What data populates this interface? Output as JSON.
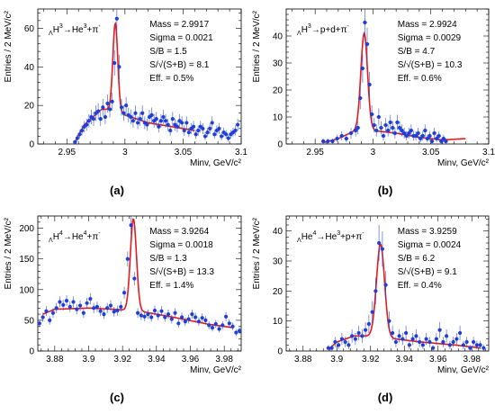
{
  "chart_data": [
    {
      "type": "scatter",
      "panel_label": "(a)",
      "process": {
        "lam": "Λ",
        "prefix_sub": "Λ",
        "html": "ΛH³→He³+π⁻",
        "parts": [
          "Λ",
          "H",
          "3",
          "→He",
          "3",
          "+π",
          "-"
        ]
      },
      "stats": [
        "Mass = 2.9917",
        "Sigma = 0.0021",
        "S/B = 1.5",
        "S/√(S+B) = 8.1",
        "Eff. = 0.5%"
      ],
      "ylabel": "Entries / 2 MeV/c²",
      "xlabel": "Minv, GeV/c²",
      "xlim": [
        2.925,
        3.1
      ],
      "ylim": [
        0,
        70
      ],
      "xticks": [
        2.95,
        3,
        3.05,
        3.1
      ],
      "xtick_labels": [
        "2.95",
        "3",
        "3.05",
        "3.1"
      ],
      "yticks": [
        0,
        20,
        40,
        60
      ],
      "ytick_labels": [
        "0",
        "20",
        "40",
        "60"
      ],
      "fit": {
        "mean": 2.9917,
        "sigma": 0.0021,
        "amp": 45,
        "bg_start": 2.957,
        "bg_points": [
          [
            2.957,
            1
          ],
          [
            2.965,
            10
          ],
          [
            2.98,
            18
          ],
          [
            2.99,
            18
          ],
          [
            3.0,
            15
          ],
          [
            3.02,
            11
          ],
          [
            3.04,
            9
          ],
          [
            3.06,
            7
          ]
        ]
      },
      "x": [
        2.957,
        2.959,
        2.961,
        2.963,
        2.965,
        2.967,
        2.969,
        2.971,
        2.973,
        2.975,
        2.977,
        2.979,
        2.981,
        2.983,
        2.985,
        2.987,
        2.989,
        2.991,
        2.993,
        2.995,
        2.997,
        2.999,
        3.001,
        3.003,
        3.005,
        3.007,
        3.009,
        3.011,
        3.013,
        3.015,
        3.017,
        3.019,
        3.021,
        3.023,
        3.025,
        3.027,
        3.029,
        3.031,
        3.033,
        3.035,
        3.037,
        3.039,
        3.041,
        3.043,
        3.045,
        3.047,
        3.049,
        3.051,
        3.053,
        3.055,
        3.057,
        3.059,
        3.061,
        3.063,
        3.065,
        3.067,
        3.069,
        3.071,
        3.073,
        3.075,
        3.077,
        3.079,
        3.081,
        3.083,
        3.085,
        3.087,
        3.089,
        3.091,
        3.093,
        3.095,
        3.097
      ],
      "y": [
        1,
        3,
        5,
        7,
        9,
        10,
        12,
        14,
        13,
        16,
        17,
        13,
        19,
        14,
        21,
        18,
        22,
        42,
        65,
        40,
        19,
        16,
        20,
        15,
        14,
        12,
        16,
        11,
        13,
        16,
        11,
        10,
        14,
        15,
        12,
        13,
        9,
        12,
        14,
        12,
        10,
        7,
        13,
        10,
        9,
        12,
        11,
        7,
        11,
        6,
        8,
        9,
        5,
        7,
        9,
        8,
        4,
        6,
        8,
        11,
        5,
        7,
        8,
        4,
        6,
        5,
        3,
        5,
        6,
        7,
        10
      ]
    },
    {
      "type": "scatter",
      "panel_label": "(b)",
      "process": {
        "html": "ΛH³→p+d+π⁻",
        "parts": [
          "Λ",
          "H",
          "3",
          "→p+d+π",
          "-"
        ]
      },
      "stats": [
        "Mass = 2.9924",
        "Sigma = 0.0029",
        "S/B = 4.7",
        "S/√(S+B) = 10.3",
        "Eff. = 0.6%"
      ],
      "ylabel": "Entries / 2 MeV/c²",
      "xlabel": "Minv, GeV/c²",
      "xlim": [
        2.925,
        3.1
      ],
      "ylim": [
        0,
        50
      ],
      "xticks": [
        2.95,
        3,
        3.05,
        3.1
      ],
      "xtick_labels": [
        "2.95",
        "3",
        "3.05",
        "3.1"
      ],
      "yticks": [
        0,
        10,
        20,
        30,
        40
      ],
      "ytick_labels": [
        "0",
        "10",
        "20",
        "30",
        "40"
      ],
      "fit": {
        "mean": 2.9924,
        "sigma": 0.0029,
        "amp": 36,
        "bg_start": 2.957,
        "bg_points": [
          [
            2.957,
            0.5
          ],
          [
            2.97,
            2
          ],
          [
            2.985,
            5
          ],
          [
            3.0,
            5
          ],
          [
            3.02,
            4
          ],
          [
            3.04,
            2.5
          ],
          [
            3.06,
            1.5
          ],
          [
            3.08,
            2
          ]
        ]
      },
      "x": [
        2.957,
        2.961,
        2.965,
        2.969,
        2.973,
        2.977,
        2.981,
        2.985,
        2.987,
        2.989,
        2.991,
        2.993,
        2.995,
        2.997,
        2.999,
        3.001,
        3.003,
        3.005,
        3.007,
        3.009,
        3.011,
        3.013,
        3.015,
        3.017,
        3.019,
        3.021,
        3.023,
        3.025,
        3.027,
        3.029,
        3.031,
        3.033,
        3.035,
        3.037,
        3.039,
        3.041,
        3.043,
        3.045,
        3.047,
        3.049,
        3.051,
        3.053,
        3.055,
        3.057,
        3.059,
        3.061,
        3.063
      ],
      "y": [
        1,
        1,
        1,
        2,
        3,
        2,
        4,
        5,
        6,
        17,
        28,
        45,
        37,
        22,
        11,
        7,
        5,
        10,
        6,
        3,
        7,
        5,
        8,
        6,
        4,
        8,
        6,
        5,
        4,
        3,
        4,
        5,
        3,
        3,
        4,
        2,
        3,
        5,
        2,
        3,
        1,
        4,
        2,
        3,
        1,
        2,
        1
      ]
    },
    {
      "type": "scatter",
      "panel_label": "(c)",
      "process": {
        "html": "ΛH⁴→He⁴+π⁻",
        "parts": [
          "Λ",
          "H",
          "4",
          "→He",
          "4",
          "+π",
          "-"
        ]
      },
      "stats": [
        "Mass = 3.9264",
        "Sigma = 0.0018",
        "S/B = 1.3",
        "S/√(S+B) = 13.3",
        "Eff. = 1.4%"
      ],
      "ylabel": "Entries / 2 MeV/c²",
      "xlabel": "Minv, GeV/c²",
      "xlim": [
        3.87,
        3.99
      ],
      "ylim": [
        0,
        220
      ],
      "xticks": [
        3.88,
        3.9,
        3.92,
        3.94,
        3.96,
        3.98
      ],
      "xtick_labels": [
        "3.88",
        "3.9",
        "3.92",
        "3.94",
        "3.96",
        "3.98"
      ],
      "yticks": [
        0,
        50,
        100,
        150,
        200
      ],
      "ytick_labels": [
        "0",
        "50",
        "100",
        "150",
        "200"
      ],
      "fit": {
        "mean": 3.9264,
        "sigma": 0.0018,
        "amp": 150,
        "bg_start": 3.873,
        "bg_points": [
          [
            3.873,
            60
          ],
          [
            3.88,
            68
          ],
          [
            3.9,
            70
          ],
          [
            3.915,
            68
          ],
          [
            3.93,
            65
          ],
          [
            3.95,
            55
          ],
          [
            3.97,
            44
          ],
          [
            3.985,
            38
          ]
        ]
      },
      "x": [
        3.871,
        3.873,
        3.875,
        3.877,
        3.879,
        3.881,
        3.883,
        3.885,
        3.887,
        3.889,
        3.891,
        3.893,
        3.895,
        3.897,
        3.899,
        3.901,
        3.903,
        3.905,
        3.907,
        3.909,
        3.911,
        3.913,
        3.915,
        3.917,
        3.919,
        3.921,
        3.923,
        3.925,
        3.927,
        3.929,
        3.931,
        3.933,
        3.935,
        3.937,
        3.939,
        3.941,
        3.943,
        3.945,
        3.947,
        3.949,
        3.951,
        3.953,
        3.955,
        3.957,
        3.959,
        3.961,
        3.963,
        3.965,
        3.967,
        3.969,
        3.971,
        3.973,
        3.975,
        3.977,
        3.979,
        3.981,
        3.983,
        3.985,
        3.987,
        3.989
      ],
      "y": [
        45,
        55,
        65,
        50,
        62,
        70,
        80,
        75,
        82,
        72,
        80,
        68,
        74,
        62,
        78,
        85,
        70,
        72,
        65,
        60,
        70,
        74,
        64,
        66,
        72,
        95,
        150,
        205,
        118,
        62,
        58,
        56,
        60,
        55,
        66,
        58,
        65,
        55,
        60,
        52,
        62,
        45,
        55,
        48,
        52,
        60,
        55,
        48,
        54,
        50,
        42,
        38,
        44,
        36,
        42,
        56,
        45,
        40,
        30,
        33
      ]
    },
    {
      "type": "scatter",
      "panel_label": "(d)",
      "process": {
        "html": "ΛHe⁴→He³+p+π⁻",
        "parts": [
          "Λ",
          "He",
          "4",
          "→He",
          "3",
          "+p+π",
          "-"
        ]
      },
      "stats": [
        "Mass = 3.9259",
        "Sigma = 0.0024",
        "S/B = 6.2",
        "S/√(S+B) = 9.1",
        "Eff. = 0.4%"
      ],
      "ylabel": "Entries / 2 MeV/c²",
      "xlabel": "Minv, GeV/c²",
      "xlim": [
        3.87,
        3.99
      ],
      "ylim": [
        0,
        45
      ],
      "xticks": [
        3.88,
        3.9,
        3.92,
        3.94,
        3.96,
        3.98
      ],
      "xtick_labels": [
        "3.88",
        "3.9",
        "3.92",
        "3.94",
        "3.96",
        "3.98"
      ],
      "yticks": [
        0,
        10,
        20,
        30,
        40
      ],
      "ytick_labels": [
        "0",
        "10",
        "20",
        "30",
        "40"
      ],
      "fit": {
        "mean": 3.9259,
        "sigma": 0.0024,
        "amp": 31,
        "bg_start": 3.895,
        "bg_points": [
          [
            3.895,
            0.5
          ],
          [
            3.9,
            3
          ],
          [
            3.91,
            5
          ],
          [
            3.92,
            5
          ],
          [
            3.935,
            4
          ],
          [
            3.95,
            3
          ],
          [
            3.97,
            2
          ],
          [
            3.985,
            1
          ]
        ]
      },
      "x": [
        3.895,
        3.897,
        3.899,
        3.901,
        3.903,
        3.905,
        3.907,
        3.909,
        3.911,
        3.913,
        3.915,
        3.917,
        3.919,
        3.921,
        3.923,
        3.925,
        3.927,
        3.929,
        3.931,
        3.933,
        3.935,
        3.937,
        3.939,
        3.941,
        3.943,
        3.945,
        3.947,
        3.949,
        3.951,
        3.953,
        3.955,
        3.957,
        3.959,
        3.961,
        3.963,
        3.965,
        3.967,
        3.969,
        3.971,
        3.973,
        3.975,
        3.977,
        3.979,
        3.981,
        3.983,
        3.985,
        3.987
      ],
      "y": [
        1,
        1,
        3,
        2,
        4,
        3,
        2,
        5,
        4,
        6,
        5,
        7,
        9,
        13,
        20,
        36,
        34,
        22,
        10,
        6,
        3,
        5,
        4,
        6,
        2,
        4,
        5,
        3,
        2,
        4,
        3,
        1,
        4,
        7,
        3,
        5,
        2,
        3,
        4,
        6,
        2,
        3,
        1,
        3,
        2,
        2,
        1
      ]
    }
  ]
}
